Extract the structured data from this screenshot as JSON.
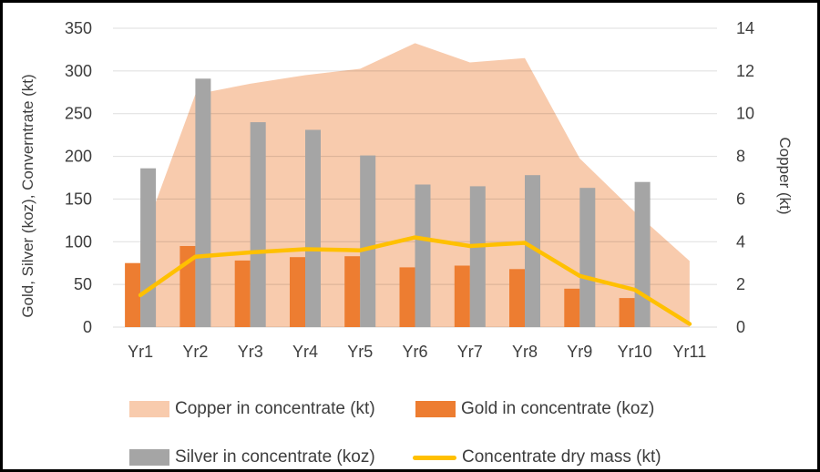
{
  "chart_data": {
    "type": "combo",
    "categories": [
      "Yr1",
      "Yr2",
      "Yr3",
      "Yr4",
      "Yr5",
      "Yr6",
      "Yr7",
      "Yr8",
      "Yr9",
      "Yr10",
      "Yr11"
    ],
    "series": [
      {
        "name": "Copper in concentrate (kt)",
        "type": "area",
        "axis": "right",
        "color": "#F8CBAD",
        "values": [
          3.9,
          10.9,
          11.4,
          11.8,
          12.1,
          13.3,
          12.4,
          12.6,
          7.9,
          5.4,
          3.1
        ]
      },
      {
        "name": "Gold in concentrate (koz)",
        "type": "bar",
        "axis": "left",
        "color": "#ED7D31",
        "values": [
          75,
          95,
          78,
          82,
          83,
          70,
          72,
          68,
          45,
          34,
          0
        ]
      },
      {
        "name": "Silver in concentrate (koz)",
        "type": "bar",
        "axis": "left",
        "color": "#A5A5A5",
        "values": [
          186,
          291,
          240,
          231,
          201,
          167,
          165,
          178,
          163,
          170,
          0
        ]
      },
      {
        "name": "Concentrate dry mass (kt)",
        "type": "line",
        "axis": "right",
        "color": "#FFC000",
        "values": [
          1.5,
          3.3,
          3.5,
          3.65,
          3.6,
          4.2,
          3.8,
          3.95,
          2.4,
          1.75,
          0.15
        ]
      }
    ],
    "left_axis": {
      "title": "Gold, Silver (koz), Converntrate (kt)",
      "min": 0,
      "max": 350,
      "step": 50,
      "ticks": [
        0,
        50,
        100,
        150,
        200,
        250,
        300,
        350
      ]
    },
    "right_axis": {
      "title": "Copper (kt)",
      "min": 0,
      "max": 14,
      "step": 2,
      "ticks": [
        0,
        2,
        4,
        6,
        8,
        10,
        12,
        14
      ]
    },
    "grid": true,
    "legend_position": "bottom"
  }
}
